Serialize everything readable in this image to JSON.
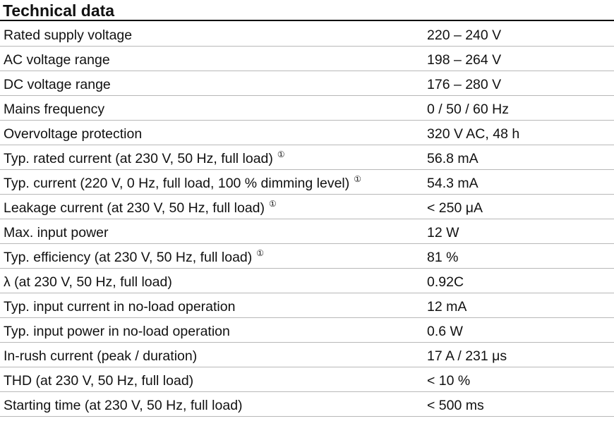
{
  "header": {
    "title": "Technical data"
  },
  "table": {
    "rows": [
      {
        "label": "Rated supply voltage",
        "value": "220 – 240 V"
      },
      {
        "label": "AC voltage range",
        "value": "198 – 264 V"
      },
      {
        "label": "DC voltage range",
        "value": "176 – 280 V"
      },
      {
        "label": "Mains frequency",
        "value": "0 / 50 / 60 Hz"
      },
      {
        "label": "Overvoltage protection",
        "value": "320 V AC, 48 h"
      },
      {
        "label": "Typ. rated current (at 230 V, 50 Hz, full load)",
        "note": "①",
        "value": "56.8 mA"
      },
      {
        "label": "Typ. current (220 V, 0 Hz, full load, 100 % dimming level)",
        "note": "①",
        "value": "54.3 mA"
      },
      {
        "label": "Leakage current (at 230 V, 50 Hz, full load)",
        "note": "①",
        "value": "< 250 μA"
      },
      {
        "label": "Max. input power",
        "value": "12 W"
      },
      {
        "label": "Typ. efficiency (at 230 V, 50 Hz, full load)",
        "note": "①",
        "value": "81 %"
      },
      {
        "label": "λ (at 230 V, 50 Hz, full load)",
        "value": "0.92C"
      },
      {
        "label": "Typ. input current in no-load operation",
        "value": "12 mA"
      },
      {
        "label": "Typ. input power in no-load operation",
        "value": "0.6 W"
      },
      {
        "label": "In-rush current (peak / duration)",
        "value": "17 A / 231 μs"
      },
      {
        "label": "THD (at 230 V, 50 Hz, full load)",
        "value": "< 10 %"
      },
      {
        "label": "Starting time (at 230 V, 50 Hz, full load)",
        "value": "< 500 ms"
      }
    ]
  }
}
